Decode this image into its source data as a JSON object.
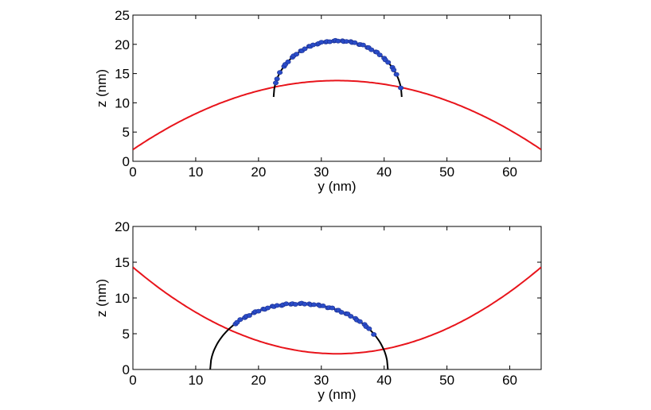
{
  "chart_data": [
    {
      "type": "line",
      "xlabel": "y (nm)",
      "ylabel": "z (nm)",
      "xlim": [
        0,
        65
      ],
      "ylim": [
        0,
        25
      ],
      "xticks": [
        0,
        10,
        20,
        30,
        40,
        50,
        60
      ],
      "yticks": [
        0,
        5,
        10,
        15,
        20,
        25
      ],
      "colors": {
        "large_arc": "#e8141b",
        "fit_arc": "#000000",
        "points": "#2a4cc8"
      },
      "curves": {
        "large_arc": {
          "center_y": 32.5,
          "apex_z": 13.8,
          "end_z": 2.0,
          "domain": [
            0,
            65
          ]
        },
        "fit_arc": {
          "center_y": 32.6,
          "apex_z": 20.6,
          "base_z": 11.0,
          "left_y": 22.4,
          "right_y": 42.8
        }
      },
      "points": {
        "from_y": 22.6,
        "to_y": 42.5
      }
    },
    {
      "type": "line",
      "xlabel": "y (nm)",
      "ylabel": "z (nm)",
      "xlim": [
        0,
        65
      ],
      "ylim": [
        0,
        20
      ],
      "xticks": [
        0,
        10,
        20,
        30,
        40,
        50,
        60
      ],
      "yticks": [
        0,
        5,
        10,
        15,
        20
      ],
      "colors": {
        "large_arc": "#e8141b",
        "fit_arc": "#000000",
        "points": "#2a4cc8"
      },
      "curves": {
        "large_arc": {
          "center_y": 32.5,
          "bottom_z": 2.2,
          "end_z": 14.3,
          "domain": [
            0,
            65
          ]
        },
        "fit_arc": {
          "center_y": 26.5,
          "apex_z": 9.2,
          "base_z": 0,
          "left_y": 12.3,
          "right_y": 40.6
        }
      },
      "points": {
        "from_y": 16.2,
        "to_y": 38.2
      }
    }
  ]
}
